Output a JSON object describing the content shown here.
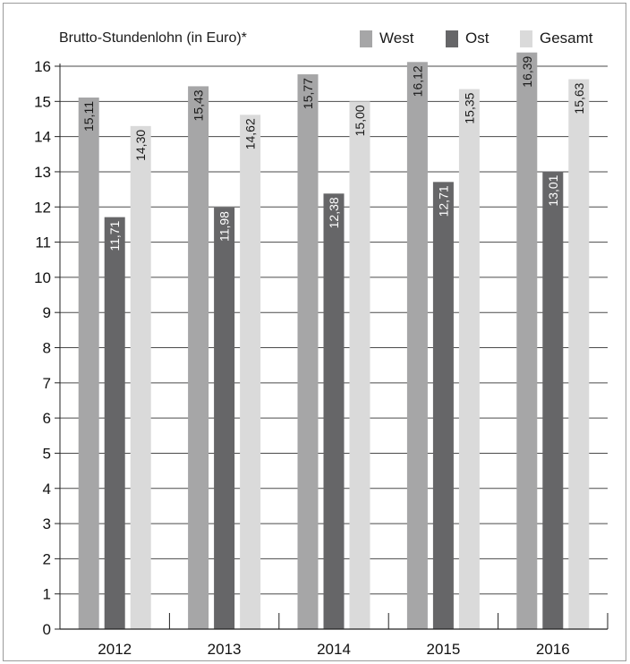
{
  "chart_data": {
    "type": "bar",
    "title": "",
    "ylabel": "Brutto-Stundenlohn (in Euro)*",
    "xlabel": "",
    "categories": [
      "2012",
      "2013",
      "2014",
      "2015",
      "2016"
    ],
    "series": [
      {
        "name": "West",
        "color": "#a6a6a7",
        "values": [
          15.11,
          15.43,
          15.77,
          16.12,
          16.39
        ],
        "labels": [
          "15,11",
          "15,43",
          "15,77",
          "16,12",
          "16,39"
        ]
      },
      {
        "name": "Ost",
        "color": "#666668",
        "values": [
          11.71,
          11.98,
          12.38,
          12.71,
          13.01
        ],
        "labels": [
          "11,71",
          "11,98",
          "12,38",
          "12,71",
          "13,01"
        ]
      },
      {
        "name": "Gesamt",
        "color": "#dadada",
        "values": [
          14.3,
          14.62,
          15.0,
          15.35,
          15.63
        ],
        "labels": [
          "14,30",
          "14,62",
          "15,00",
          "15,35",
          "15,63"
        ]
      }
    ],
    "ylim": [
      0,
      16
    ],
    "yticks": [
      "0",
      "1",
      "2",
      "3",
      "4",
      "5",
      "6",
      "7",
      "8",
      "9",
      "10",
      "11",
      "12",
      "13",
      "14",
      "15",
      "16"
    ],
    "grid": true,
    "legend_position": "top-right"
  }
}
